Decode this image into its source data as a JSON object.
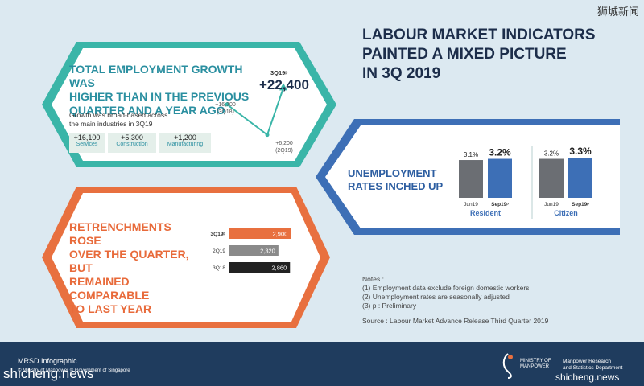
{
  "watermark_top": "狮城新闻",
  "title_lines": [
    "LABOUR MARKET INDICATORS",
    "PAINTED A MIXED PICTURE",
    "IN 3Q 2019"
  ],
  "employment": {
    "heading": "TOTAL EMPLOYMENT GROWTH WAS HIGHER THAN IN THE PREVIOUS QUARTER AND A YEAR AGO",
    "heading_lines": [
      "TOTAL EMPLOYMENT GROWTH WAS",
      "HIGHER THAN IN THE PREVIOUS",
      "QUARTER AND A YEAR AGO"
    ],
    "desc_lines": [
      "Growth was broad-based across",
      "the main industries in 3Q19"
    ],
    "industries": [
      {
        "value": "+16,100",
        "label": "Services"
      },
      {
        "value": "+5,300",
        "label": "Construction"
      },
      {
        "value": "+1,200",
        "label": "Manufacturing"
      }
    ],
    "highlight_label": "3Q19ᵖ",
    "highlight_value": "+22,400",
    "point_labels": [
      {
        "value": "+16,700",
        "period": "(3Q18)"
      },
      {
        "value": "+6,200",
        "period": "(2Q19)"
      }
    ]
  },
  "unemployment": {
    "heading_lines": [
      "UNEMPLOYMENT",
      "RATES INCHED UP"
    ]
  },
  "retrenchments": {
    "heading_lines": [
      "RETRENCHMENTS ROSE",
      "OVER THE QUARTER, BUT",
      "REMAINED COMPARABLE",
      "TO LAST YEAR"
    ]
  },
  "notes": {
    "title": "Notes :",
    "items": [
      "(1) Employment data exclude foreign domestic workers",
      "(2) Unemployment rates are seasonally adjusted",
      "(3) p : Preliminary"
    ],
    "source": "Source : Labour Market Advance Release Third Quarter 2019"
  },
  "footer": {
    "title": "MRSD Infographic",
    "copyright": "© Ministry of Manpower © Government of Singapore",
    "watermark_left": "shicheng.news",
    "watermark_right": "shicheng.news",
    "ministry": "MINISTRY OF MANPOWER",
    "dept_lines": [
      "Manpower Research",
      "and Statistics Department"
    ]
  },
  "colors": {
    "teal": "#3ab5a8",
    "orange": "#e8703f",
    "blue": "#3d6fb6",
    "gray_bar": "#6b6e73",
    "navy": "#1f3c5e"
  },
  "chart_data": [
    {
      "type": "line",
      "x": [
        "3Q18",
        "2Q19",
        "3Q19ᵖ"
      ],
      "values": [
        16700,
        6200,
        22400
      ],
      "data_labels": [
        "+16,700",
        "+6,200",
        "+22,400"
      ]
    },
    {
      "type": "bar",
      "title": "Resident",
      "categories": [
        "Jun19",
        "Sep19ᵖ"
      ],
      "values": [
        3.1,
        3.2
      ],
      "data_labels": [
        "3.1%",
        "3.2%"
      ],
      "ylim": [
        0,
        4
      ]
    },
    {
      "type": "bar",
      "title": "Citizen",
      "categories": [
        "Jun19",
        "Sep19ᵖ"
      ],
      "values": [
        3.2,
        3.3
      ],
      "data_labels": [
        "3.2%",
        "3.3%"
      ],
      "ylim": [
        0,
        4
      ]
    },
    {
      "type": "bar",
      "orientation": "horizontal",
      "categories": [
        "3Q19ᵖ",
        "2Q19",
        "3Q18"
      ],
      "values": [
        2900,
        2320,
        2860
      ],
      "data_labels": [
        "2,900",
        "2,320",
        "2,860"
      ],
      "xlim": [
        0,
        3000
      ]
    }
  ]
}
